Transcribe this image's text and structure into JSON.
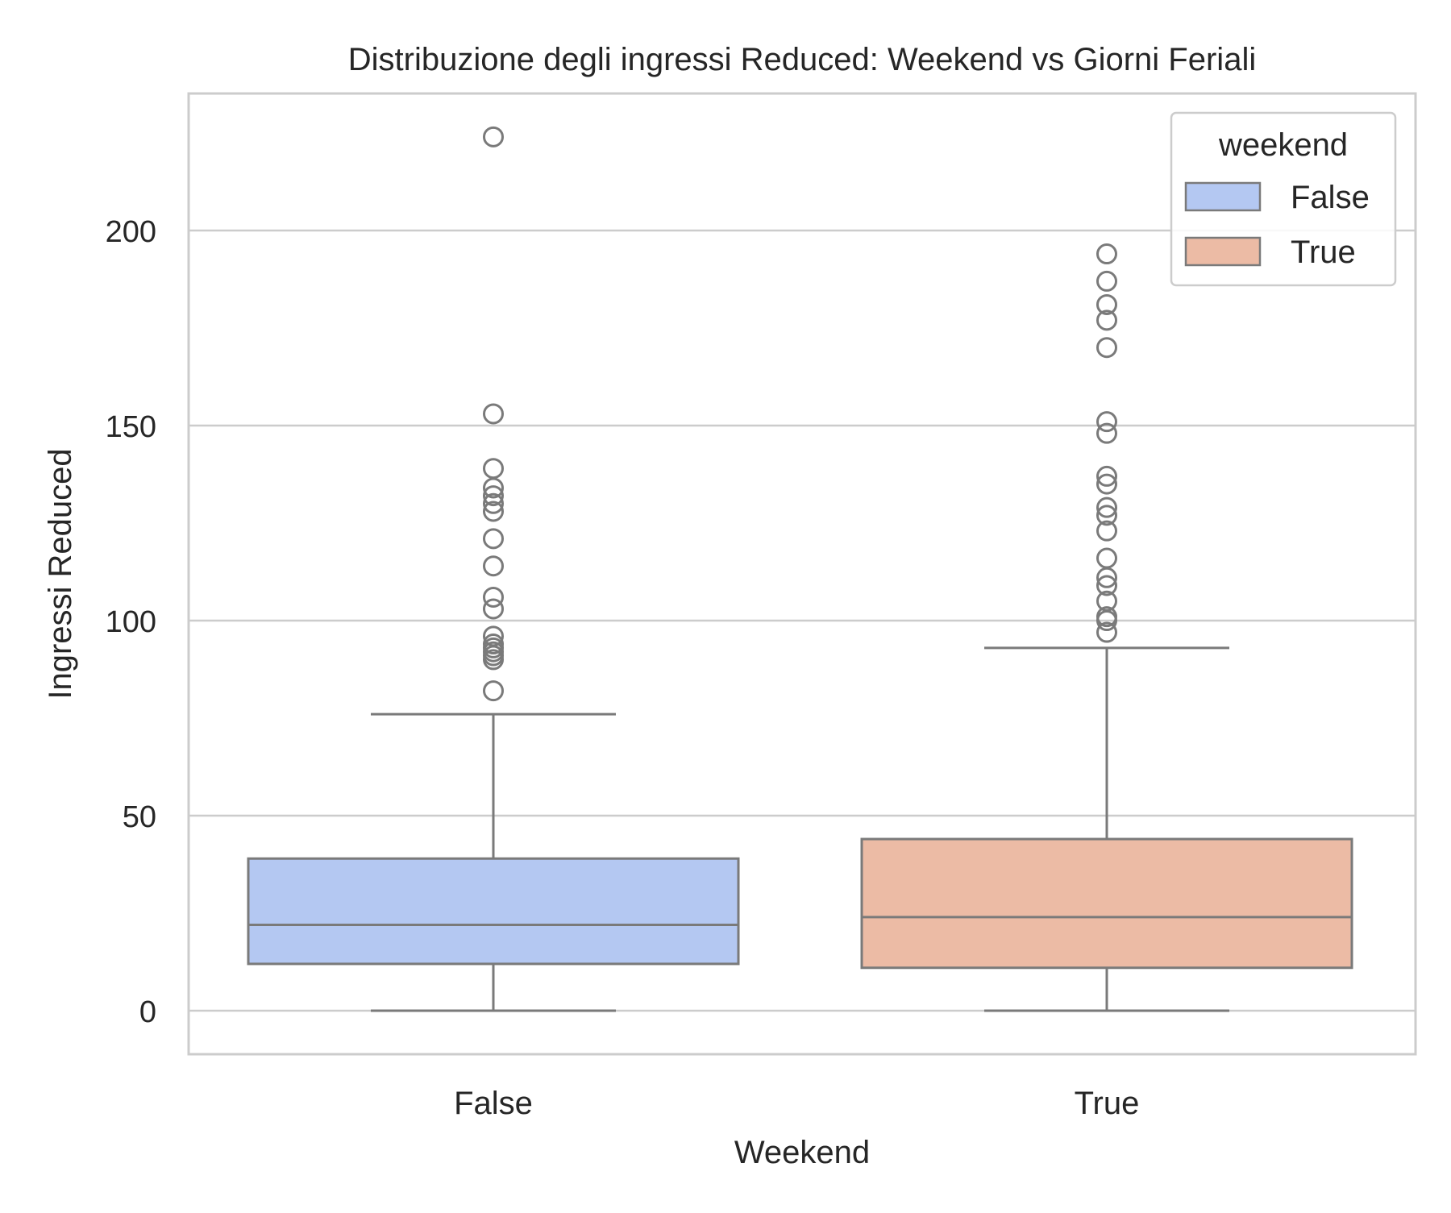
{
  "chart_data": {
    "type": "box",
    "title": "Distribuzione degli ingressi Reduced: Weekend vs Giorni Feriali",
    "xlabel": "Weekend",
    "ylabel": "Ingressi Reduced",
    "ylim": [
      -11,
      235
    ],
    "yticks": [
      0,
      50,
      100,
      150,
      200
    ],
    "grid": true,
    "legend": {
      "title": "weekend",
      "placement": "top-right",
      "entries": [
        "False",
        "True"
      ]
    },
    "categories": [
      "False",
      "True"
    ],
    "series": [
      {
        "name": "False",
        "color": "#b4c8f2",
        "min": 0,
        "q1": 12,
        "median": 22,
        "q3": 39,
        "max": 76,
        "outliers": [
          224,
          153,
          139,
          134,
          132,
          130,
          128,
          121,
          114,
          106,
          103,
          96,
          94,
          93,
          92,
          91,
          90,
          82
        ]
      },
      {
        "name": "True",
        "color": "#ecbba5",
        "min": 0,
        "q1": 11,
        "median": 24,
        "q3": 44,
        "max": 93,
        "outliers": [
          194,
          187,
          181,
          177,
          170,
          151,
          148,
          137,
          135,
          129,
          127,
          123,
          116,
          111,
          109,
          105,
          101,
          100,
          97
        ]
      }
    ]
  }
}
